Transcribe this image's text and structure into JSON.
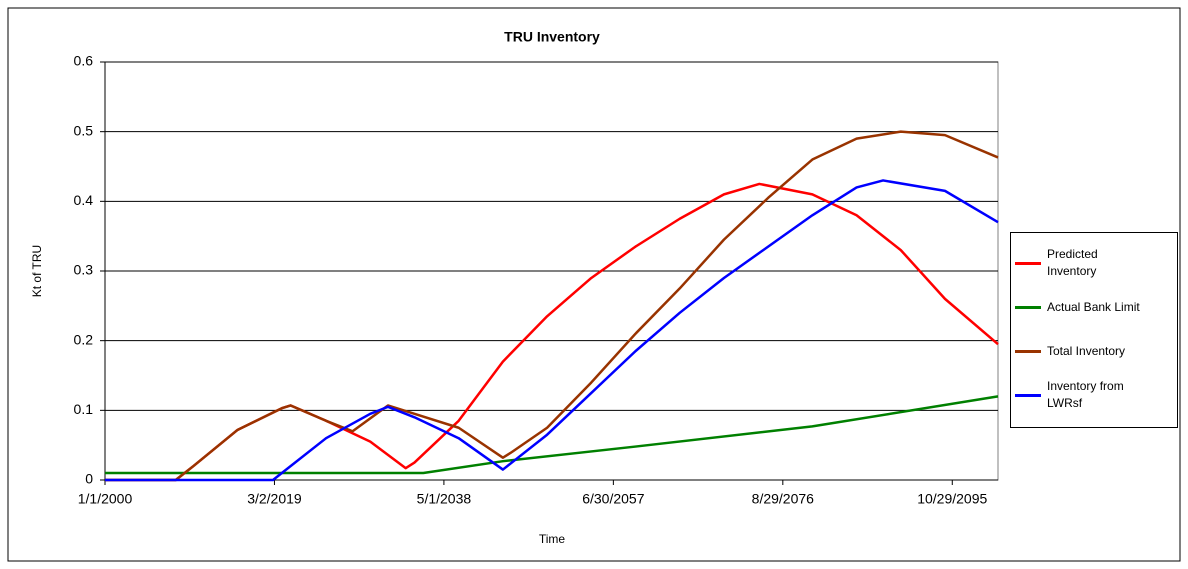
{
  "chart_data": {
    "type": "line",
    "title": "TRU Inventory",
    "x_label": "Time",
    "y_label": "Kt of TRU",
    "xlim": [
      "1/1/2000",
      "12/31/2100"
    ],
    "xticks": [
      "1/1/2000",
      "3/2/2019",
      "5/1/2038",
      "6/30/2057",
      "8/29/2076",
      "10/29/2095"
    ],
    "ylim": [
      0,
      0.6
    ],
    "yticks": [
      0,
      0.1,
      0.2,
      0.3,
      0.4,
      0.5,
      0.6
    ],
    "grid": true,
    "legend": "right",
    "series": [
      {
        "name": "Predicted Inventory",
        "color": "#ff0000",
        "x": [
          "1/1/2000",
          "1/1/2008",
          "1/1/2010",
          "1/1/2015",
          "1/1/2020",
          "1/1/2021",
          "1/1/2025",
          "1/1/2030",
          "1/1/2034",
          "1/1/2035",
          "1/1/2040",
          "1/1/2045",
          "1/1/2050",
          "1/1/2055",
          "1/1/2060",
          "1/1/2065",
          "1/1/2070",
          "1/1/2074",
          "1/1/2080",
          "1/1/2085",
          "1/1/2090",
          "1/1/2095",
          "12/31/2100"
        ],
        "values": [
          0,
          0,
          0.02,
          0.072,
          0.103,
          0.107,
          0.085,
          0.055,
          0.017,
          0.025,
          0.085,
          0.17,
          0.235,
          0.29,
          0.335,
          0.375,
          0.41,
          0.425,
          0.41,
          0.38,
          0.33,
          0.26,
          0.195
        ]
      },
      {
        "name": "Actual Bank Limit",
        "color": "#008000",
        "x": [
          "1/1/2000",
          "1/1/2036",
          "1/1/2045",
          "1/1/2060",
          "1/1/2080",
          "12/31/2100"
        ],
        "values": [
          0.01,
          0.01,
          0.027,
          0.048,
          0.077,
          0.12
        ]
      },
      {
        "name": "Total Inventory",
        "color": "#993300",
        "x": [
          "1/1/2000",
          "1/1/2008",
          "1/1/2010",
          "1/1/2015",
          "1/1/2020",
          "1/1/2021",
          "1/1/2025",
          "1/1/2028",
          "1/1/2032",
          "1/1/2035",
          "1/1/2040",
          "1/1/2045",
          "1/1/2046",
          "1/1/2050",
          "1/1/2055",
          "1/1/2060",
          "1/1/2065",
          "1/1/2070",
          "1/1/2075",
          "1/1/2080",
          "1/1/2085",
          "1/1/2090",
          "1/1/2095",
          "12/31/2100"
        ],
        "values": [
          0,
          0,
          0.02,
          0.072,
          0.103,
          0.107,
          0.085,
          0.07,
          0.107,
          0.095,
          0.075,
          0.032,
          0.04,
          0.075,
          0.14,
          0.21,
          0.275,
          0.345,
          0.405,
          0.46,
          0.49,
          0.5,
          0.495,
          0.463
        ]
      },
      {
        "name": "Inventory from LWRsf",
        "color": "#0000ff",
        "x": [
          "1/1/2000",
          "1/1/2019",
          "1/1/2020",
          "1/1/2025",
          "1/1/2030",
          "1/1/2032",
          "1/1/2035",
          "1/1/2040",
          "1/1/2045",
          "1/1/2050",
          "1/1/2055",
          "1/1/2060",
          "1/1/2065",
          "1/1/2070",
          "1/1/2075",
          "1/1/2080",
          "1/1/2085",
          "1/1/2088",
          "1/1/2095",
          "12/31/2100"
        ],
        "values": [
          0,
          0,
          0.01,
          0.06,
          0.095,
          0.105,
          0.09,
          0.06,
          0.015,
          0.065,
          0.125,
          0.185,
          0.24,
          0.29,
          0.335,
          0.38,
          0.42,
          0.43,
          0.415,
          0.37
        ]
      }
    ]
  }
}
